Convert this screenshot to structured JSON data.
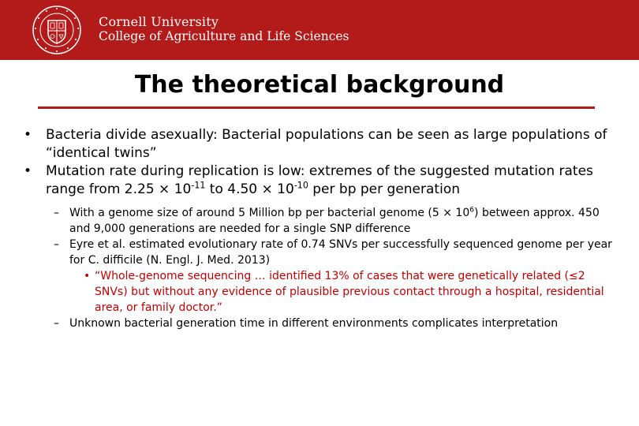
{
  "header": {
    "bg_color": "#b31b1b",
    "university": "Cornell University",
    "college": "College of Agriculture and Life Sciences",
    "seal_text": "CORNELL UNIVERSITY FOUNDED A.D. 1865"
  },
  "slide": {
    "title": "The theoretical background",
    "bullets": [
      {
        "text": "Bacteria divide asexually: Bacterial populations can be seen as large populations of “identical twins”"
      },
      {
        "pre": "Mutation rate during replication is low: extremes of the suggested mutation rates range from 2.25 × 10",
        "exp1": "-11",
        "mid": " to 4.50 × 10",
        "exp2": "-10",
        "post": " per bp per generation"
      }
    ],
    "sub": [
      {
        "pre": "With a genome size of around 5 Million bp per bacterial genome (5 × 10",
        "exp": "6",
        "post": ") between approx. 450 and 9,000 generations are needed for a single SNP difference"
      },
      {
        "text": "Eyre et al. estimated evolutionary rate of 0.74 SNVs per successfully sequenced genome per year for C. difficile (N. Engl. J. Med. 2013)"
      },
      {
        "text": "Unknown bacterial generation time in different environments complicates interpretation"
      }
    ],
    "quote": "“Whole-genome sequencing … identified 13% of cases that were genetically related (≤2 SNVs) but without any evidence of plausible previous contact through a hospital, residential area, or family doctor.”",
    "accent_color": "#c00000"
  }
}
